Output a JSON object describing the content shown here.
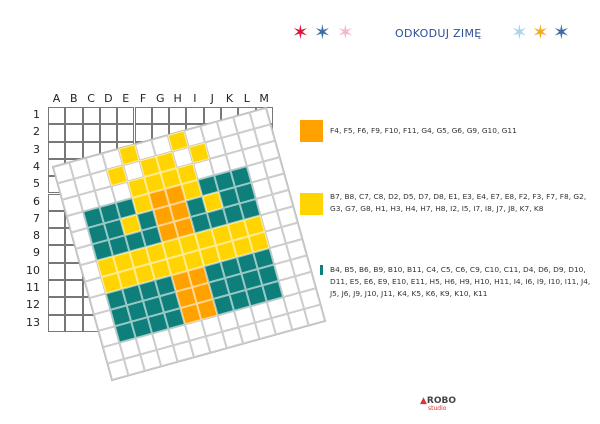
{
  "header": {
    "title": "ODKODUJ ZIMĘ",
    "stars_left": [
      "#d9173a",
      "#3b6fa8",
      "#f5b8c8"
    ],
    "stars_right": [
      "#a9d3f0",
      "#f5a91a",
      "#3a6ea5"
    ]
  },
  "grid": {
    "columns": [
      "A",
      "B",
      "C",
      "D",
      "E",
      "F",
      "G",
      "H",
      "I",
      "J",
      "K",
      "L",
      "M"
    ],
    "rows": [
      "1",
      "2",
      "3",
      "4",
      "5",
      "6",
      "7",
      "8",
      "9",
      "10",
      "11",
      "12",
      "13"
    ]
  },
  "legend": [
    {
      "color": "#ffa200",
      "cells": "F4, F5, F6, F9, F10, F11, G4, G5, G6, G9, G10, G11"
    },
    {
      "color": "#ffd400",
      "cells": "B7, B8, C7, C8, D2, D5, D7, D8, E1, E3, E4, E7, E8, F2, F3, F7, F8, G2, G3, G7, G8, H1, H3, H4, H7, H8, I2, I5, I7, I8, J7, J8, K7, K8"
    },
    {
      "color": "#0e7f7a",
      "cells": "B4, B5, B6, B9, B10, B11, C4, C5, C6, C9, C10, C11, D4, D6, D9, D10, D11, E5, E6, E9, E10, E11, H5, H6, H9, H10, H11, I4, I6, I9, I10, I11, J4, J5, J6, J9, J10, J11, K4, K5, K6, K9, K10, K11"
    }
  ],
  "logo": {
    "name": "ROBO",
    "sub": "studio"
  }
}
